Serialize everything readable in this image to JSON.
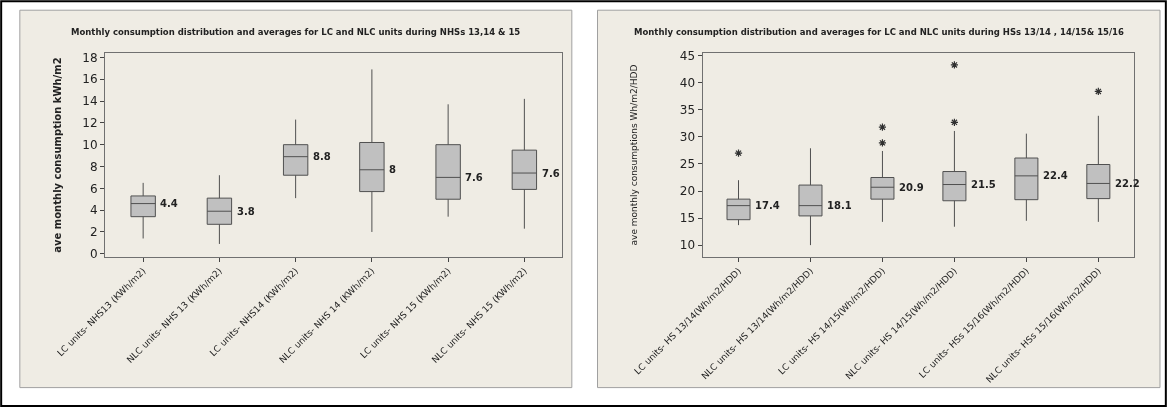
{
  "chart_data": [
    {
      "type": "box",
      "title": "Monthly consumption distribution and averages for LC and NLC units during NHSs 13,14 & 15",
      "ylabel": "ave monthly consumption kWh/m2",
      "categories": [
        "LC units- NHS13 (KWh/m2)",
        "NLC units- NHS 13 (KWh/m2)",
        "LC units- NHS14 (KWh/m2)",
        "NLC units- NHS 14 (KWh/m2)",
        "LC units- NHS 15 (KWh/m2)",
        "NLC units- NHS 15 (KWh/m2)"
      ],
      "boxes": [
        {
          "low": 1.4,
          "q1": 3.4,
          "median": 4.6,
          "q3": 5.3,
          "high": 6.5
        },
        {
          "low": 0.9,
          "q1": 2.7,
          "median": 3.9,
          "q3": 5.1,
          "high": 7.2
        },
        {
          "low": 5.1,
          "q1": 7.2,
          "median": 8.9,
          "q3": 10.0,
          "high": 12.3
        },
        {
          "low": 2.0,
          "q1": 5.7,
          "median": 7.7,
          "q3": 10.2,
          "high": 16.9
        },
        {
          "low": 3.4,
          "q1": 5.0,
          "median": 7.0,
          "q3": 10.0,
          "high": 13.7
        },
        {
          "low": 2.3,
          "q1": 5.9,
          "median": 7.4,
          "q3": 9.5,
          "high": 14.2
        }
      ],
      "value_labels": [
        "4.4",
        "3.8",
        "8.8",
        "8",
        "7.6",
        "7.6"
      ],
      "color": "#c0c0c0",
      "ylim": [
        -0.3,
        18.4
      ],
      "yticks": [
        0,
        2,
        4,
        6,
        8,
        10,
        12,
        14,
        16,
        18
      ]
    },
    {
      "type": "box",
      "title": "Monthly consumption distribution and averages for LC and NLC units during HSs 13/14 , 14/15& 15/16",
      "ylabel": "ave monthly consumptions Wh/m2/HDD",
      "categories": [
        "LC units- HS 13/14(Wh/m2/HDD)",
        "NLC units- HS 13/14(Wh/m2/HDD)",
        "LC units- HS 14/15(Wh/m2/HDD)",
        "NLC units- HS 14/15(Wh/m2/HDD)",
        "LC units- HSs 15/16(Wh/m2/HDD)",
        "NLC units- HSs 15/16(Wh/m2/HDD)"
      ],
      "boxes": [
        {
          "low": 13.7,
          "q1": 14.7,
          "median": 17.3,
          "q3": 18.5,
          "high": 22.0,
          "outliers": [
            27.0
          ]
        },
        {
          "low": 10.0,
          "q1": 15.4,
          "median": 17.3,
          "q3": 21.1,
          "high": 27.9
        },
        {
          "low": 14.3,
          "q1": 18.5,
          "median": 20.7,
          "q3": 22.5,
          "high": 27.4,
          "outliers": [
            28.9,
            31.8
          ]
        },
        {
          "low": 13.4,
          "q1": 18.2,
          "median": 21.2,
          "q3": 23.6,
          "high": 31.1,
          "outliers": [
            32.7,
            43.3
          ]
        },
        {
          "low": 14.5,
          "q1": 18.4,
          "median": 22.8,
          "q3": 26.1,
          "high": 30.6
        },
        {
          "low": 14.3,
          "q1": 18.6,
          "median": 21.4,
          "q3": 24.9,
          "high": 33.9,
          "outliers": [
            38.4
          ]
        }
      ],
      "value_labels": [
        "17.4",
        "18.1",
        "20.9",
        "21.5",
        "22.4",
        "22.2"
      ],
      "color": "#c0c0c0",
      "marker": "star",
      "ylim": [
        7.8,
        45.5
      ],
      "yticks": [
        10,
        15,
        20,
        25,
        30,
        35,
        40,
        45
      ]
    }
  ]
}
